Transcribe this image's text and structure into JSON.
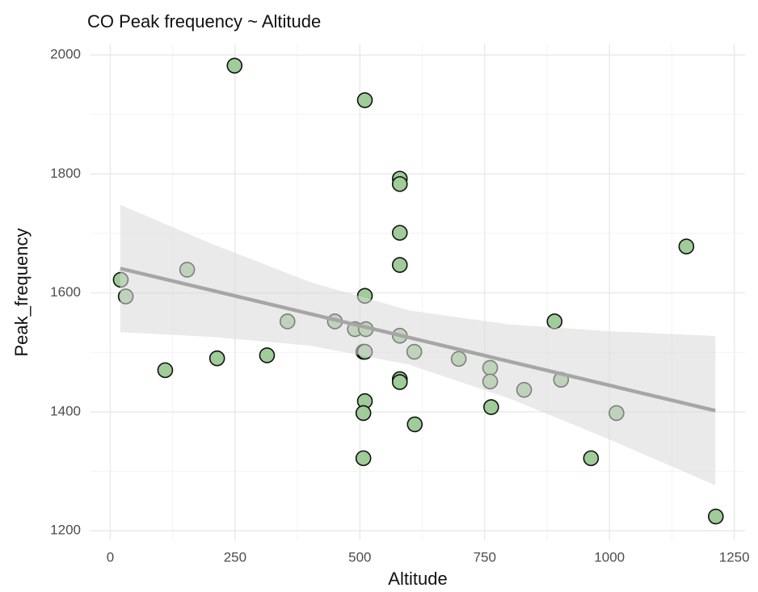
{
  "chart_data": {
    "type": "scatter",
    "title": "CO Peak frequency ~ Altitude",
    "x_label": "Altitude",
    "y_label": "Peak_frequency",
    "x": [
      21,
      31,
      110,
      154,
      214,
      249,
      314,
      355,
      450,
      490,
      510,
      510,
      512,
      507,
      510,
      510,
      507,
      507,
      580,
      580,
      580,
      580,
      580,
      580,
      580,
      609,
      610,
      698,
      761,
      761,
      763,
      829,
      890,
      903,
      963,
      1014,
      1154,
      1213
    ],
    "values": [
      1622,
      1594,
      1470,
      1639,
      1490,
      1982,
      1495,
      1552,
      1552,
      1539,
      1924,
      1595,
      1539,
      1501,
      1501,
      1418,
      1398,
      1322,
      1792,
      1783,
      1701,
      1647,
      1528,
      1455,
      1450,
      1501,
      1379,
      1489,
      1474,
      1451,
      1408,
      1437,
      1552,
      1454,
      1322,
      1398,
      1678,
      1224
    ],
    "color": "#9fcc98",
    "fit": {
      "x": [
        20,
        1212
      ],
      "values": [
        1641,
        1402
      ],
      "color": "#a6a6a6"
    },
    "band": {
      "x": [
        20,
        200,
        400,
        600,
        800,
        1000,
        1212
      ],
      "lower": [
        1534,
        1526.1,
        1511.4,
        1479.1,
        1422.3,
        1353.5,
        1276.5
      ],
      "upper": [
        1748,
        1683.7,
        1618.2,
        1570.3,
        1546.9,
        1535.5,
        1527.5
      ],
      "color": "#d9d9d9"
    },
    "xlim": [
      -39.6,
      1271.6
    ],
    "ylim": [
      1184,
      2018
    ],
    "xticks": [
      0,
      250,
      500,
      750,
      1000,
      1250
    ],
    "yticks": [
      1200,
      1400,
      1600,
      1800,
      2000
    ],
    "minor_xticks": [
      125,
      375,
      625,
      875,
      1125
    ],
    "minor_yticks": [
      1300,
      1500,
      1700,
      1900
    ],
    "grid": true
  }
}
